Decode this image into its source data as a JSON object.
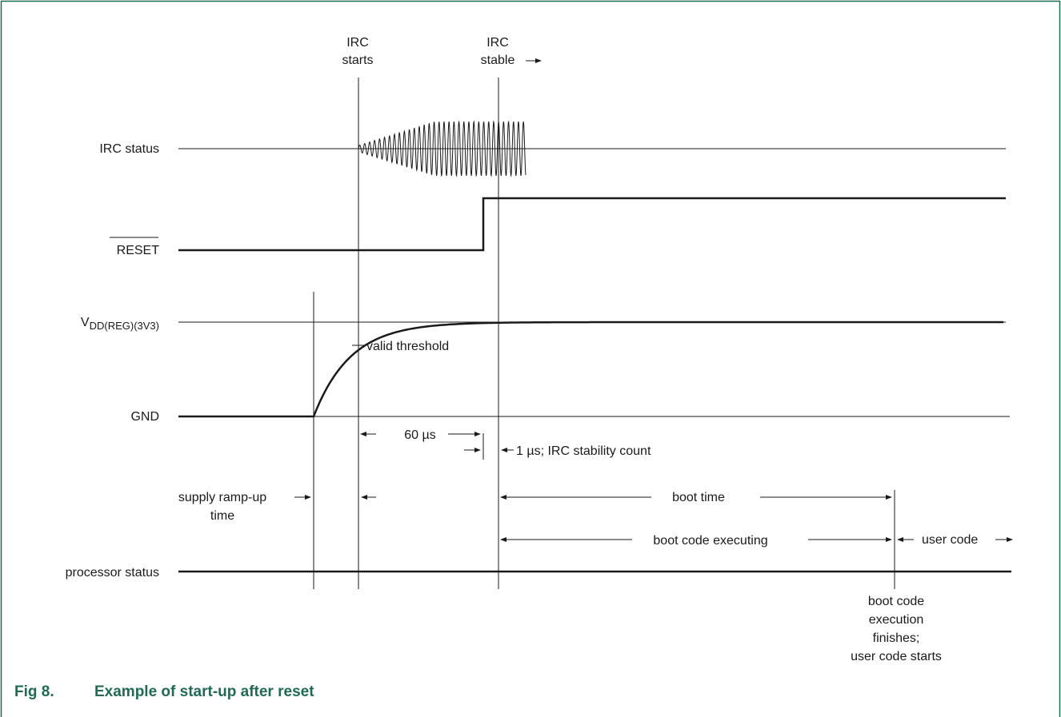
{
  "caption": {
    "figure_number": "Fig 8.",
    "title": "Example of start-up after reset"
  },
  "signals": {
    "irc_status": "IRC status",
    "reset": "RESET",
    "vdd_main": "V",
    "vdd_sub": "DD(REG)(3V3)",
    "gnd": "GND",
    "processor_status": "processor status"
  },
  "events": {
    "irc_starts_1": "IRC",
    "irc_starts_2": "starts",
    "irc_stable_1": "IRC",
    "irc_stable_2": "stable"
  },
  "annotations": {
    "valid_threshold": "valid threshold",
    "time_60us": "60 µs",
    "stability_count": "1 µs; IRC stability count",
    "supply_ramp_1": "supply ramp-up",
    "supply_ramp_2": "time",
    "boot_time": "boot time",
    "boot_code_executing": "boot code executing",
    "user_code": "user code",
    "finish_1": "boot code",
    "finish_2": "execution",
    "finish_3": "finishes;",
    "finish_4": "user code starts"
  },
  "colors": {
    "caption": "#1f6b52",
    "frame": "#1f6b52",
    "line": "#1a1a1a"
  }
}
